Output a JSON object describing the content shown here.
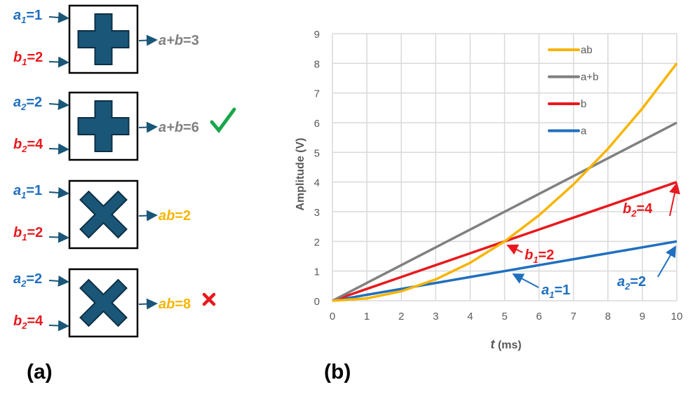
{
  "colors": {
    "a": "#1f6fbf",
    "b": "#e8191e",
    "sum": "#808080",
    "product": "#f7b500",
    "block": "#1a5678",
    "check": "#1aa64a",
    "cross": "#e8191e"
  },
  "panel_a": {
    "label": "(a)",
    "blocks": [
      {
        "op": "plus-icon",
        "in1": {
          "var": "a",
          "sub": "1",
          "val": "=1"
        },
        "in2": {
          "var": "b",
          "sub": "1",
          "val": "=2"
        },
        "out": {
          "pre": "a+",
          "var": "b",
          "val": "=3"
        },
        "mark": ""
      },
      {
        "op": "plus-icon",
        "in1": {
          "var": "a",
          "sub": "2",
          "val": "=2"
        },
        "in2": {
          "var": "b",
          "sub": "2",
          "val": "=4"
        },
        "out": {
          "pre": "a+",
          "var": "b",
          "val": "=6"
        },
        "mark": "check"
      },
      {
        "op": "times-icon",
        "in1": {
          "var": "a",
          "sub": "1",
          "val": "=1"
        },
        "in2": {
          "var": "b",
          "sub": "1",
          "val": "=2"
        },
        "out": {
          "pre": "ab",
          "var": "",
          "val": "=2"
        },
        "mark": ""
      },
      {
        "op": "times-icon",
        "in1": {
          "var": "a",
          "sub": "2",
          "val": "=2"
        },
        "in2": {
          "var": "b",
          "sub": "2",
          "val": "=4"
        },
        "out": {
          "pre": "ab",
          "var": "",
          "val": "=8"
        },
        "mark": "cross"
      }
    ]
  },
  "panel_b": {
    "label": "(b)"
  },
  "chart_data": {
    "type": "line",
    "title": "",
    "xlabel_var": "t",
    "xlabel_unit": " (ms)",
    "ylabel": "Amplitude (V)",
    "xlim": [
      0,
      10
    ],
    "ylim": [
      0,
      9
    ],
    "xticks": [
      "0",
      "1",
      "2",
      "3",
      "4",
      "5",
      "6",
      "7",
      "8",
      "9",
      "10"
    ],
    "yticks": [
      "0",
      "1",
      "2",
      "3",
      "4",
      "5",
      "6",
      "7",
      "8",
      "9"
    ],
    "grid": true,
    "legend_position": "top-right",
    "x": [
      0,
      1,
      2,
      3,
      4,
      5,
      6,
      7,
      8,
      9,
      10
    ],
    "series": [
      {
        "name": "ab",
        "color": "#f7b500",
        "values": [
          0,
          0.08,
          0.32,
          0.72,
          1.28,
          2,
          2.88,
          3.92,
          5.12,
          6.48,
          8
        ]
      },
      {
        "name": "a+b",
        "color": "#808080",
        "values": [
          0,
          0.6,
          1.2,
          1.8,
          2.4,
          3,
          3.6,
          4.2,
          4.8,
          5.4,
          6
        ]
      },
      {
        "name": "b",
        "color": "#e8191e",
        "values": [
          0,
          0.4,
          0.8,
          1.2,
          1.6,
          2,
          2.4,
          2.8,
          3.2,
          3.6,
          4
        ]
      },
      {
        "name": "a",
        "color": "#1f6fbf",
        "values": [
          0,
          0.2,
          0.4,
          0.6,
          0.8,
          1,
          1.2,
          1.4,
          1.6,
          1.8,
          2
        ]
      }
    ],
    "annotations": [
      {
        "var": "b",
        "sub": "2",
        "val": "=4",
        "color": "#e8191e",
        "points_to": [
          10,
          4
        ]
      },
      {
        "var": "b",
        "sub": "1",
        "val": "=2",
        "color": "#e8191e",
        "points_to": [
          5,
          2
        ]
      },
      {
        "var": "a",
        "sub": "1",
        "val": "=1",
        "color": "#1f6fbf",
        "points_to": [
          5,
          1
        ]
      },
      {
        "var": "a",
        "sub": "2",
        "val": "=2",
        "color": "#1f6fbf",
        "points_to": [
          10,
          2
        ]
      }
    ]
  }
}
